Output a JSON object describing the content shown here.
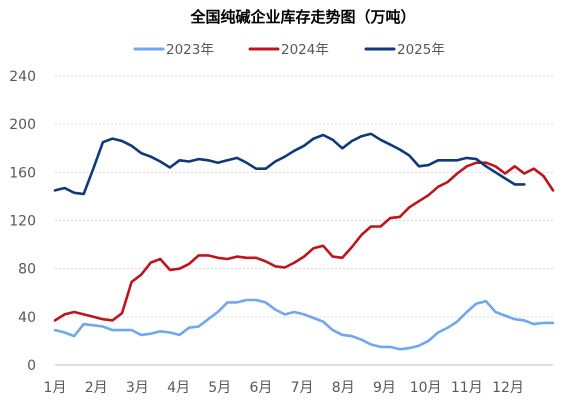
{
  "chart_data": {
    "type": "line",
    "title": "全国纯碱企业库存走势图（万吨）",
    "xlabel": "",
    "ylabel": "",
    "ylim": [
      0,
      240
    ],
    "yticks": [
      0,
      40,
      80,
      120,
      160,
      200,
      240
    ],
    "x_range": [
      0,
      52
    ],
    "xtick_labels": [
      {
        "pos": 0,
        "label": "1月"
      },
      {
        "pos": 4.3,
        "label": "2月"
      },
      {
        "pos": 8.6,
        "label": "3月"
      },
      {
        "pos": 12.9,
        "label": "4月"
      },
      {
        "pos": 17.2,
        "label": "5月"
      },
      {
        "pos": 21.5,
        "label": "6月"
      },
      {
        "pos": 25.8,
        "label": "7月"
      },
      {
        "pos": 30.1,
        "label": "8月"
      },
      {
        "pos": 34.4,
        "label": "9月"
      },
      {
        "pos": 38.7,
        "label": "10月"
      },
      {
        "pos": 43,
        "label": "11月"
      },
      {
        "pos": 47.3,
        "label": "12月"
      }
    ],
    "legend_position": "top",
    "grid": "horizontal-dashed",
    "series": [
      {
        "name": "2023年",
        "color": "#6fa8f0",
        "x": [
          0,
          1,
          2,
          3,
          4,
          5,
          6,
          7,
          8,
          9,
          10,
          11,
          12,
          13,
          14,
          15,
          16,
          17,
          18,
          19,
          20,
          21,
          22,
          23,
          24,
          25,
          26,
          27,
          28,
          29,
          30,
          31,
          32,
          33,
          34,
          35,
          36,
          37,
          38,
          39,
          40,
          41,
          42,
          43,
          44,
          45,
          46,
          47,
          48,
          49,
          50,
          51,
          52
        ],
        "values": [
          29,
          27,
          24,
          34,
          33,
          32,
          29,
          29,
          29,
          25,
          26,
          28,
          27,
          25,
          31,
          32,
          38,
          44,
          52,
          52,
          54,
          54,
          52,
          46,
          42,
          44,
          42,
          39,
          36,
          29,
          25,
          24,
          21,
          17,
          15,
          15,
          13,
          14,
          16,
          20,
          27,
          31,
          36,
          44,
          51,
          53,
          44,
          41,
          38,
          37,
          34,
          35,
          35
        ]
      },
      {
        "name": "2024年",
        "color": "#c0141d",
        "x": [
          0,
          1,
          2,
          3,
          4,
          5,
          6,
          7,
          8,
          9,
          10,
          11,
          12,
          13,
          14,
          15,
          16,
          17,
          18,
          19,
          20,
          21,
          22,
          23,
          24,
          25,
          26,
          27,
          28,
          29,
          30,
          31,
          32,
          33,
          34,
          35,
          36,
          37,
          38,
          39,
          40,
          41,
          42,
          43,
          44,
          45,
          46,
          47,
          48,
          49,
          50,
          51,
          52
        ],
        "values": [
          37,
          42,
          44,
          42,
          40,
          38,
          37,
          43,
          69,
          75,
          85,
          88,
          79,
          80,
          84,
          91,
          91,
          89,
          88,
          90,
          89,
          89,
          86,
          82,
          81,
          85,
          90,
          97,
          99,
          90,
          89,
          98,
          108,
          115,
          115,
          122,
          123,
          131,
          136,
          141,
          148,
          152,
          159,
          165,
          168,
          168,
          165,
          159,
          165,
          159,
          163,
          157,
          145
        ]
      },
      {
        "name": "2025年",
        "color": "#0e3a7c",
        "x": [
          0,
          1,
          2,
          3,
          4,
          5,
          6,
          7,
          8,
          9,
          10,
          11,
          12,
          13,
          14,
          15,
          16,
          17,
          18,
          19,
          20,
          21,
          22,
          23,
          24,
          25,
          26,
          27,
          28,
          29,
          30,
          31,
          32,
          33,
          34,
          35,
          36,
          37,
          38,
          39,
          40,
          41,
          42,
          43,
          44,
          45,
          46,
          47,
          48,
          49
        ],
        "values": [
          145,
          147,
          143,
          142,
          163,
          185,
          188,
          186,
          182,
          176,
          173,
          169,
          164,
          170,
          169,
          171,
          170,
          168,
          170,
          172,
          168,
          163,
          163,
          169,
          173,
          178,
          182,
          188,
          191,
          187,
          180,
          186,
          190,
          192,
          187,
          183,
          179,
          174,
          165,
          166,
          170,
          170,
          170,
          172,
          171,
          165,
          160,
          155,
          150,
          150
        ]
      }
    ]
  }
}
